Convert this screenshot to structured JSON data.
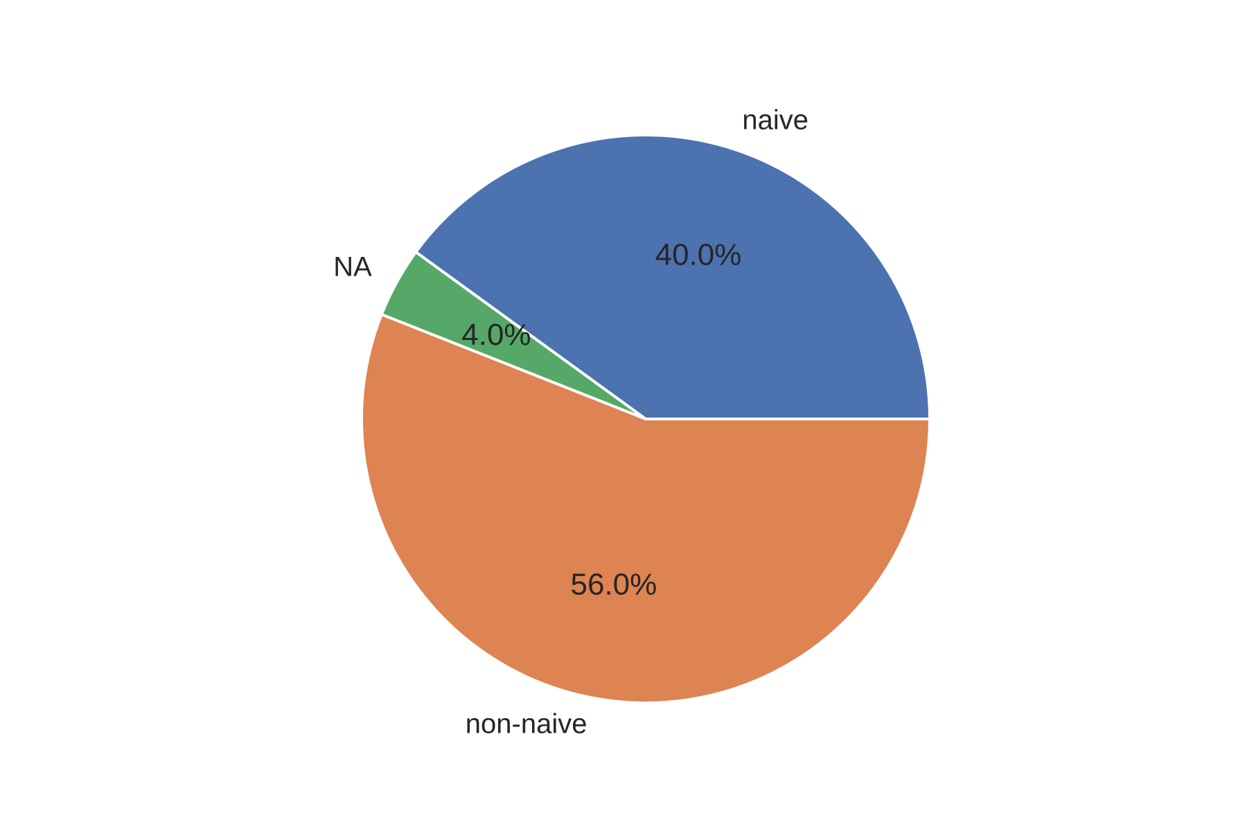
{
  "chart_data": {
    "type": "pie",
    "categories": [
      "naive",
      "NA",
      "non-naive"
    ],
    "values": [
      40.0,
      4.0,
      56.0
    ],
    "percent_labels": [
      "40.0%",
      "4.0%",
      "56.0%"
    ],
    "colors": [
      "#4c72b0",
      "#55a868",
      "#dd8452"
    ],
    "start_angle_deg": 0,
    "direction": "counterclockwise",
    "wedge_edgecolor": "#ffffff",
    "title": "",
    "legend": "none"
  }
}
